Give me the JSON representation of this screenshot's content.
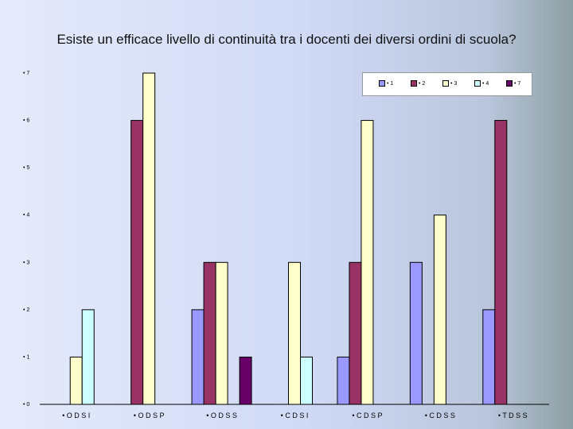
{
  "chart_data": {
    "type": "bar",
    "title": "Esiste un efficace livello di continuità tra i docenti dei diversi ordini di scuola?",
    "categories": [
      "• O D S I",
      "• O D S P",
      "• O D S S",
      "• C D S I",
      "• C D S P",
      "• C D S S",
      "• T D S S"
    ],
    "series": [
      {
        "name": "• 1",
        "color": "#9999ff",
        "values": [
          0,
          0,
          2,
          0,
          1,
          3,
          2
        ]
      },
      {
        "name": "• 2",
        "color": "#993366",
        "values": [
          0,
          6,
          3,
          0,
          3,
          0,
          6
        ]
      },
      {
        "name": "• 3",
        "color": "#ffffcc",
        "values": [
          1,
          7,
          3,
          3,
          6,
          4,
          0
        ]
      },
      {
        "name": "• 4",
        "color": "#ccffff",
        "values": [
          2,
          0,
          0,
          1,
          0,
          0,
          0
        ]
      },
      {
        "name": "• 7",
        "color": "#660066",
        "values": [
          0,
          0,
          1,
          0,
          0,
          0,
          0
        ]
      }
    ],
    "y_ticks": [
      "• 0",
      "• 1",
      "• 2",
      "• 3",
      "• 4",
      "• 5",
      "• 6",
      "• 7"
    ],
    "ylim": [
      0,
      7
    ],
    "grid": false,
    "legend_position": "top-right"
  }
}
